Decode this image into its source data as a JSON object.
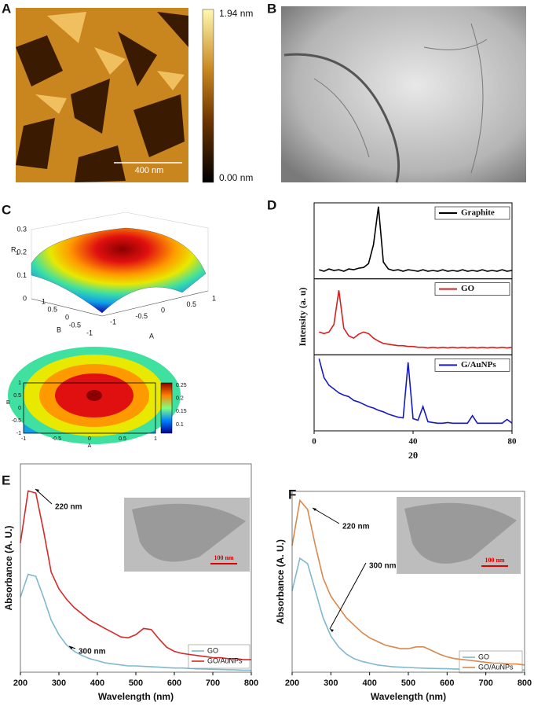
{
  "panels": {
    "A": {
      "label": "A",
      "colorbar_max": "1.94 nm",
      "colorbar_min": "0.00 nm",
      "scale_bar": "400 nm"
    },
    "B": {
      "label": "B"
    },
    "C": {
      "label": "C",
      "surface": {
        "zlabel": "R",
        "zlabel_sub": "1",
        "xlabel": "A",
        "ylabel": "B",
        "zticks": [
          0,
          0.1,
          0.2,
          0.3
        ],
        "xticks": [
          -1,
          -0.5,
          0,
          0.5,
          1
        ],
        "yticks": [
          1,
          0.5,
          0,
          -0.5,
          -1
        ]
      },
      "contour": {
        "xlabel": "A",
        "ylabel": "B",
        "xticks": [
          -1,
          -0.5,
          0,
          0.5,
          1
        ],
        "yticks": [
          1,
          0.5,
          0,
          -0.5,
          -1
        ],
        "colorbar_ticks": [
          0.25,
          0.2,
          0.15,
          0.1
        ]
      }
    }
  },
  "chart_data": [
    {
      "type": "line",
      "panel": "D",
      "xlabel": "2θ",
      "ylabel": "Intensity (a. u)",
      "x": [
        2,
        4,
        6,
        8,
        10,
        12,
        14,
        16,
        18,
        20,
        22,
        24,
        26,
        28,
        30,
        32,
        34,
        36,
        38,
        40,
        42,
        44,
        46,
        48,
        50,
        52,
        54,
        56,
        58,
        60,
        62,
        64,
        66,
        68,
        70,
        72,
        74,
        76,
        78,
        80
      ],
      "xlim": [
        0,
        80
      ],
      "xticks": [
        0,
        40,
        80
      ],
      "ylim": [
        0,
        1
      ],
      "series": [
        {
          "name": "Graphite",
          "color": "#000000",
          "values": [
            0.12,
            0.1,
            0.13,
            0.11,
            0.12,
            0.1,
            0.13,
            0.12,
            0.14,
            0.15,
            0.2,
            0.45,
            0.95,
            0.22,
            0.13,
            0.11,
            0.12,
            0.1,
            0.12,
            0.11,
            0.1,
            0.12,
            0.1,
            0.11,
            0.1,
            0.12,
            0.1,
            0.11,
            0.1,
            0.12,
            0.1,
            0.11,
            0.1,
            0.12,
            0.1,
            0.11,
            0.1,
            0.12,
            0.1,
            0.11
          ]
        },
        {
          "name": "GO",
          "color": "#d62020",
          "values": [
            0.3,
            0.28,
            0.3,
            0.4,
            0.85,
            0.35,
            0.25,
            0.22,
            0.27,
            0.3,
            0.28,
            0.22,
            0.18,
            0.15,
            0.14,
            0.13,
            0.12,
            0.12,
            0.11,
            0.11,
            0.1,
            0.1,
            0.09,
            0.1,
            0.09,
            0.1,
            0.09,
            0.1,
            0.09,
            0.1,
            0.09,
            0.1,
            0.09,
            0.1,
            0.09,
            0.1,
            0.09,
            0.1,
            0.09,
            0.1
          ]
        },
        {
          "name": "G/AuNPs",
          "color": "#1818c8",
          "values": [
            0.95,
            0.7,
            0.6,
            0.55,
            0.5,
            0.47,
            0.45,
            0.4,
            0.38,
            0.35,
            0.32,
            0.3,
            0.27,
            0.25,
            0.22,
            0.2,
            0.18,
            0.17,
            0.9,
            0.16,
            0.14,
            0.32,
            0.12,
            0.11,
            0.1,
            0.1,
            0.11,
            0.1,
            0.1,
            0.1,
            0.1,
            0.2,
            0.1,
            0.1,
            0.1,
            0.1,
            0.1,
            0.1,
            0.15,
            0.1
          ]
        }
      ]
    },
    {
      "type": "line",
      "panel": "E",
      "xlabel": "Wavelength (nm)",
      "ylabel": "Absorbance (A. U.)",
      "x": [
        200,
        220,
        240,
        260,
        280,
        300,
        320,
        340,
        360,
        380,
        400,
        420,
        440,
        460,
        480,
        500,
        520,
        540,
        560,
        580,
        600,
        620,
        640,
        660,
        680,
        700,
        720,
        740,
        760,
        780,
        800
      ],
      "xlim": [
        200,
        800
      ],
      "xticks": [
        200,
        300,
        400,
        500,
        600,
        700,
        800
      ],
      "ylim": [
        0,
        1
      ],
      "annotations": [
        "220 nm",
        "300 nm"
      ],
      "inset_scale_bar": "100 nm",
      "legend": "lower right",
      "series": [
        {
          "name": "GO",
          "color": "#7fb8d0",
          "values": [
            0.36,
            0.47,
            0.46,
            0.36,
            0.25,
            0.18,
            0.13,
            0.1,
            0.08,
            0.065,
            0.055,
            0.045,
            0.04,
            0.035,
            0.03,
            0.03,
            0.028,
            0.026,
            0.024,
            0.022,
            0.02,
            0.02,
            0.018,
            0.016,
            0.015,
            0.014,
            0.013,
            0.012,
            0.011,
            0.01,
            0.01
          ]
        },
        {
          "name": "GO/AuNPs",
          "color": "#d42a2a",
          "values": [
            0.62,
            0.87,
            0.86,
            0.68,
            0.48,
            0.4,
            0.35,
            0.31,
            0.28,
            0.25,
            0.23,
            0.21,
            0.19,
            0.17,
            0.165,
            0.18,
            0.21,
            0.205,
            0.16,
            0.12,
            0.1,
            0.09,
            0.085,
            0.08,
            0.075,
            0.07,
            0.07,
            0.065,
            0.065,
            0.06,
            0.06
          ]
        }
      ]
    },
    {
      "type": "line",
      "panel": "F",
      "xlabel": "Wavelength (nm)",
      "ylabel": "Absorbance (A. U.)",
      "x": [
        200,
        220,
        240,
        260,
        280,
        300,
        320,
        340,
        360,
        380,
        400,
        420,
        440,
        460,
        480,
        500,
        520,
        540,
        560,
        580,
        600,
        620,
        640,
        660,
        680,
        700,
        720,
        740,
        760,
        780,
        800
      ],
      "xlim": [
        200,
        800
      ],
      "xticks": [
        200,
        300,
        400,
        500,
        600,
        700,
        800
      ],
      "ylim": [
        0,
        1
      ],
      "annotations": [
        "220 nm",
        "300 nm"
      ],
      "inset_scale_bar": "100 nm",
      "legend": "lower right",
      "series": [
        {
          "name": "GO",
          "color": "#7fb8d0",
          "values": [
            0.45,
            0.63,
            0.6,
            0.45,
            0.3,
            0.2,
            0.14,
            0.1,
            0.075,
            0.06,
            0.05,
            0.04,
            0.035,
            0.03,
            0.028,
            0.026,
            0.024,
            0.022,
            0.021,
            0.02,
            0.019,
            0.018,
            0.017,
            0.016,
            0.015,
            0.015,
            0.014,
            0.013,
            0.013,
            0.012,
            0.012
          ]
        },
        {
          "name": "GO/AuNPs",
          "color": "#d9874a",
          "values": [
            0.7,
            0.95,
            0.9,
            0.7,
            0.52,
            0.42,
            0.36,
            0.3,
            0.26,
            0.22,
            0.19,
            0.17,
            0.15,
            0.14,
            0.13,
            0.13,
            0.14,
            0.14,
            0.12,
            0.1,
            0.085,
            0.075,
            0.07,
            0.065,
            0.06,
            0.055,
            0.05,
            0.05,
            0.045,
            0.045,
            0.04
          ]
        }
      ]
    }
  ]
}
